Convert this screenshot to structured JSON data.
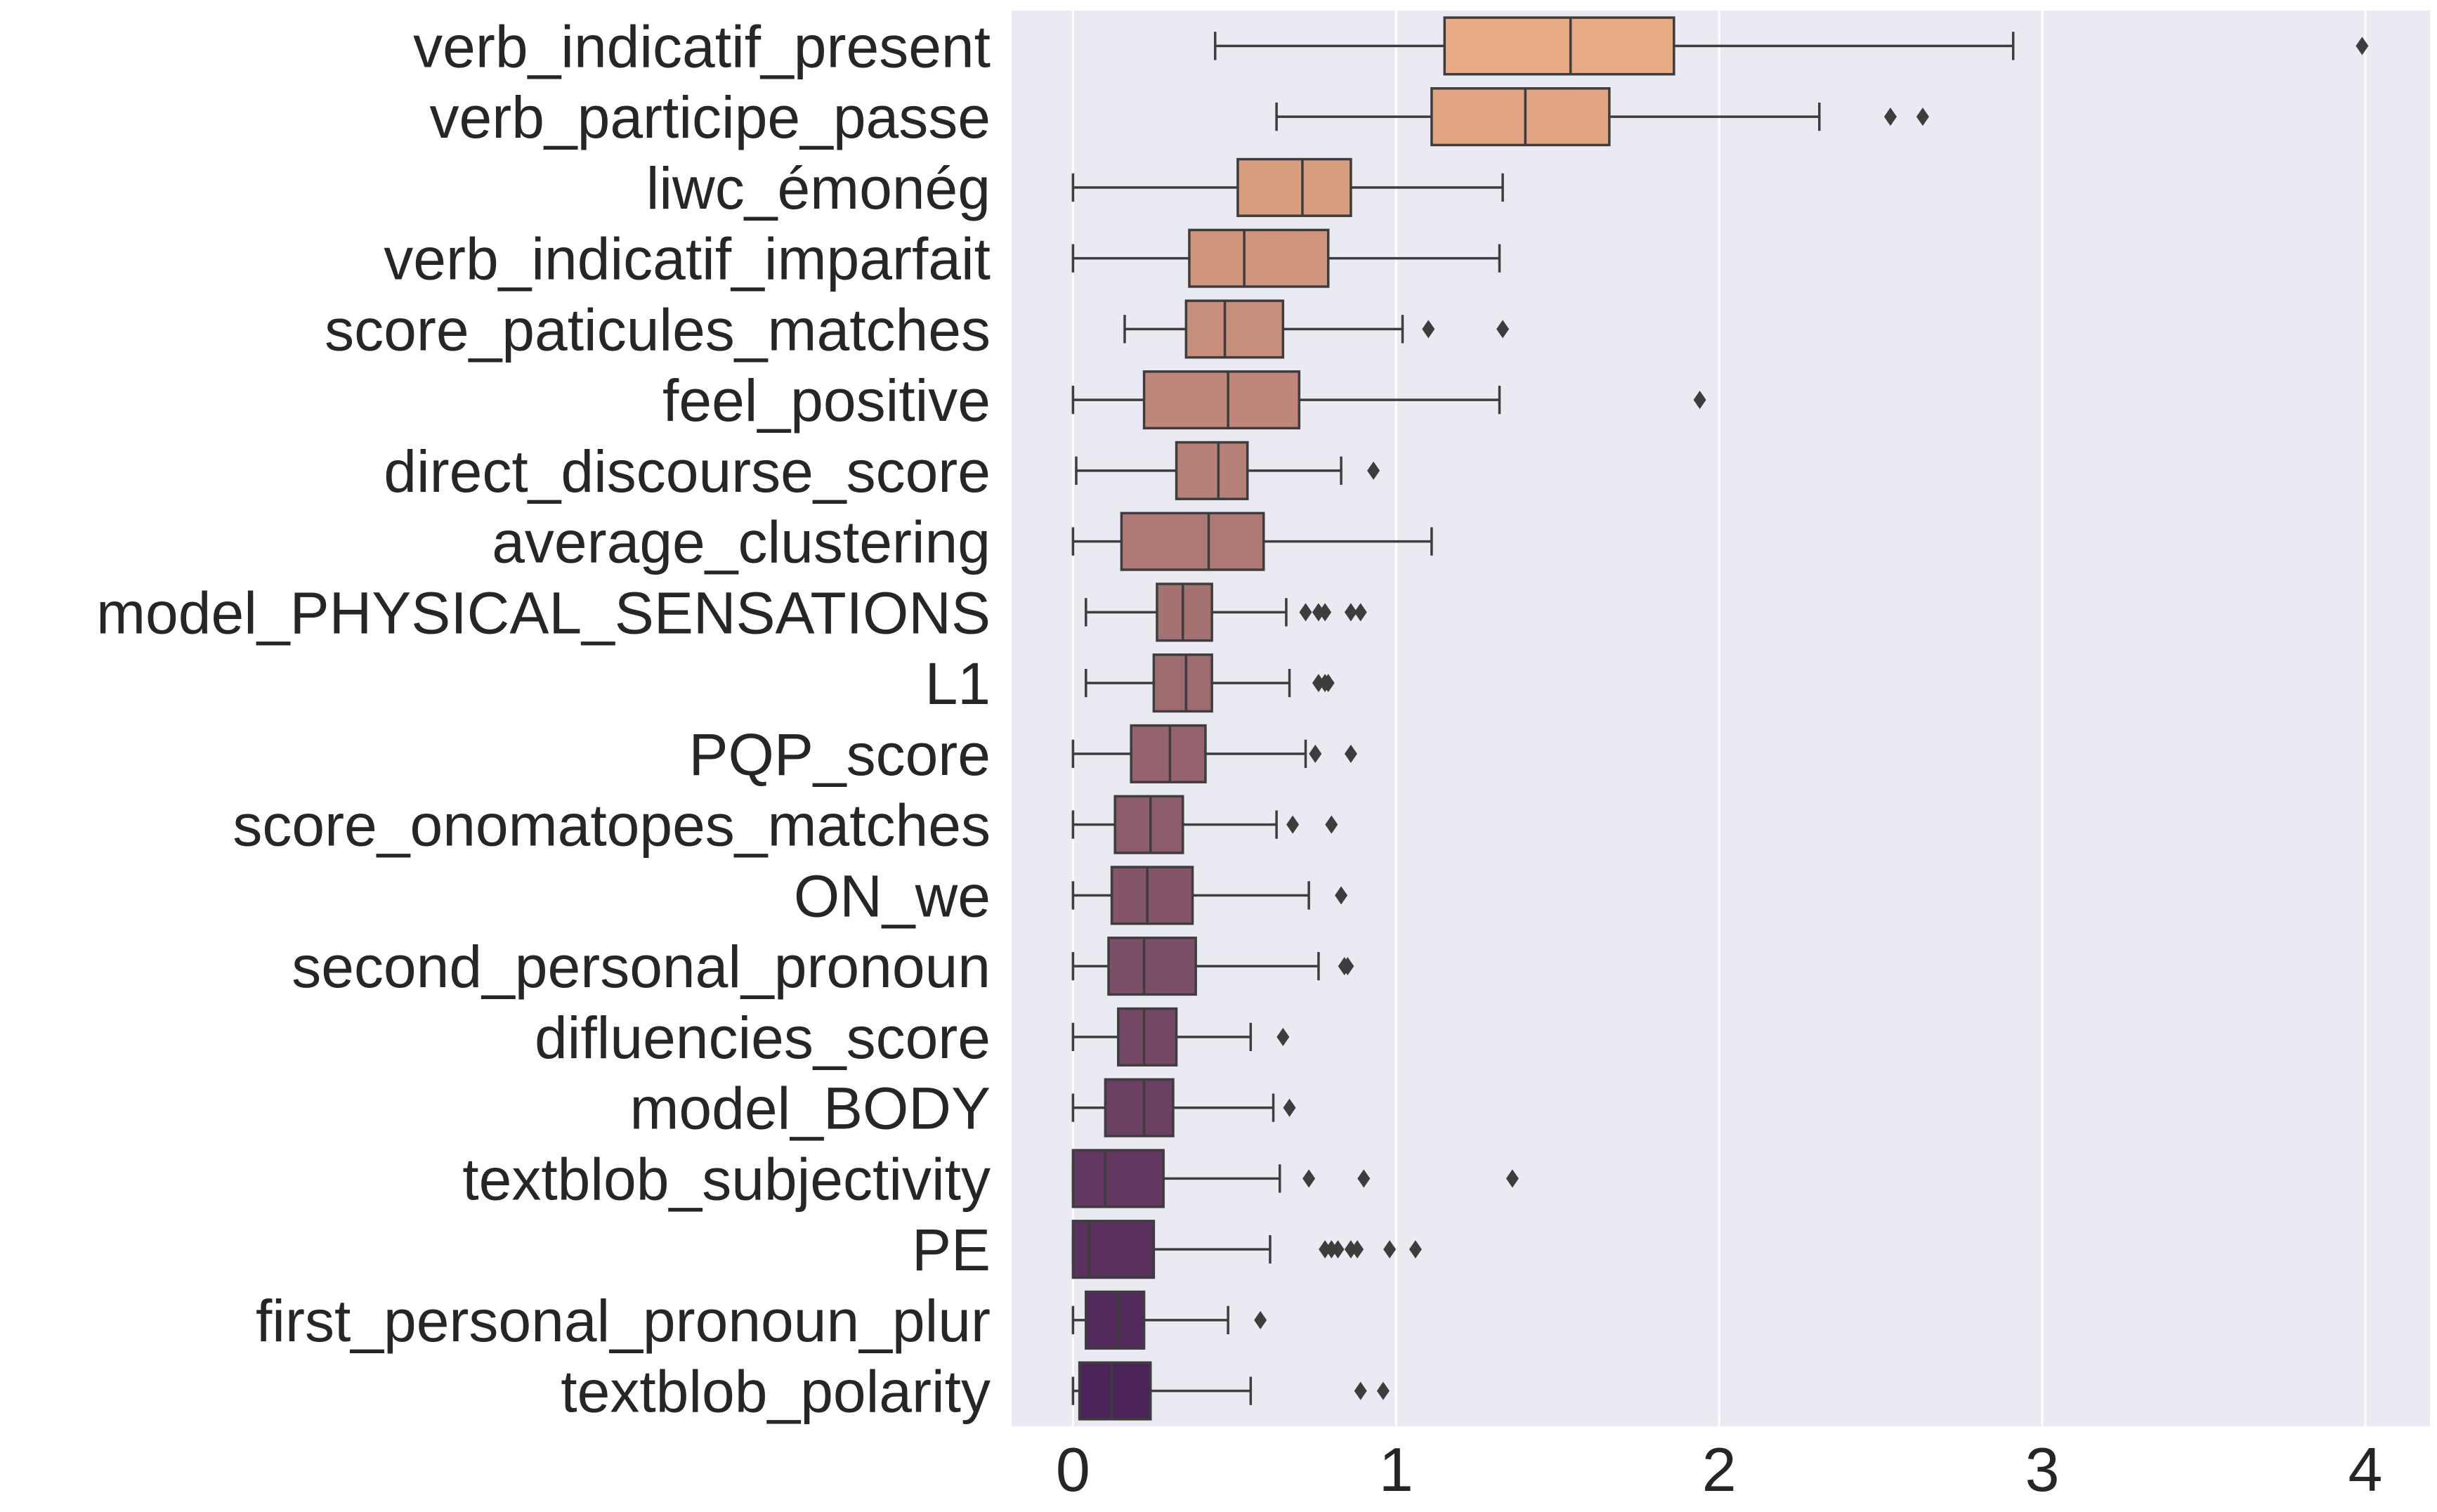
{
  "chart_data": {
    "type": "box",
    "orientation": "horizontal",
    "title": "",
    "xlabel": "",
    "ylabel": "",
    "xlim": [
      -0.19,
      4.2
    ],
    "xticks": [
      0,
      1,
      2,
      3,
      4
    ],
    "grid": true,
    "legend": "none",
    "background_color": "#eaeaf2",
    "palette_start": "#e8ab84",
    "palette_end": "#4a2359",
    "categories": [
      "verb_indicatif_present",
      "verb_participe_passe",
      "liwc_émonég",
      "verb_indicatif_imparfait",
      "score_paticules_matches",
      "feel_positive",
      "direct_discourse_score",
      "average_clustering",
      "model_PHYSICAL_SENSATIONS",
      "L1",
      "PQP_score",
      "score_onomatopes_matches",
      "ON_we",
      "second_personal_pronoun",
      "difluencies_score",
      "model_BODY",
      "textblob_subjectivity",
      "PE",
      "first_personal_pronoun_plur",
      "textblob_polarity"
    ],
    "boxes": [
      {
        "whislo": 0.44,
        "q1": 1.15,
        "med": 1.54,
        "q3": 1.86,
        "whishi": 2.91,
        "fliers": [
          3.99
        ]
      },
      {
        "whislo": 0.63,
        "q1": 1.11,
        "med": 1.4,
        "q3": 1.66,
        "whishi": 2.31,
        "fliers": [
          2.53,
          2.63
        ]
      },
      {
        "whislo": 0.0,
        "q1": 0.51,
        "med": 0.71,
        "q3": 0.86,
        "whishi": 1.33,
        "fliers": []
      },
      {
        "whislo": 0.0,
        "q1": 0.36,
        "med": 0.53,
        "q3": 0.79,
        "whishi": 1.32,
        "fliers": []
      },
      {
        "whislo": 0.16,
        "q1": 0.35,
        "med": 0.47,
        "q3": 0.65,
        "whishi": 1.02,
        "fliers": [
          1.1,
          1.33
        ]
      },
      {
        "whislo": 0.0,
        "q1": 0.22,
        "med": 0.48,
        "q3": 0.7,
        "whishi": 1.32,
        "fliers": [
          1.94
        ]
      },
      {
        "whislo": 0.01,
        "q1": 0.32,
        "med": 0.45,
        "q3": 0.54,
        "whishi": 0.83,
        "fliers": [
          0.93
        ]
      },
      {
        "whislo": 0.0,
        "q1": 0.15,
        "med": 0.42,
        "q3": 0.59,
        "whishi": 1.11,
        "fliers": []
      },
      {
        "whislo": 0.04,
        "q1": 0.26,
        "med": 0.34,
        "q3": 0.43,
        "whishi": 0.66,
        "fliers": [
          0.72,
          0.76,
          0.78,
          0.86,
          0.89
        ]
      },
      {
        "whislo": 0.04,
        "q1": 0.25,
        "med": 0.35,
        "q3": 0.43,
        "whishi": 0.67,
        "fliers": [
          0.76,
          0.78,
          0.79
        ]
      },
      {
        "whislo": 0.0,
        "q1": 0.18,
        "med": 0.3,
        "q3": 0.41,
        "whishi": 0.72,
        "fliers": [
          0.75,
          0.86
        ]
      },
      {
        "whislo": 0.0,
        "q1": 0.13,
        "med": 0.24,
        "q3": 0.34,
        "whishi": 0.63,
        "fliers": [
          0.68,
          0.8
        ]
      },
      {
        "whislo": 0.0,
        "q1": 0.12,
        "med": 0.23,
        "q3": 0.37,
        "whishi": 0.73,
        "fliers": [
          0.83
        ]
      },
      {
        "whislo": 0.0,
        "q1": 0.11,
        "med": 0.22,
        "q3": 0.38,
        "whishi": 0.76,
        "fliers": [
          0.84,
          0.85
        ]
      },
      {
        "whislo": 0.0,
        "q1": 0.14,
        "med": 0.22,
        "q3": 0.32,
        "whishi": 0.55,
        "fliers": [
          0.65
        ]
      },
      {
        "whislo": 0.0,
        "q1": 0.1,
        "med": 0.22,
        "q3": 0.31,
        "whishi": 0.62,
        "fliers": [
          0.67
        ]
      },
      {
        "whislo": 0.0,
        "q1": 0.0,
        "med": 0.1,
        "q3": 0.28,
        "whishi": 0.64,
        "fliers": [
          0.73,
          0.9,
          1.36
        ]
      },
      {
        "whislo": 0.0,
        "q1": 0.0,
        "med": 0.05,
        "q3": 0.25,
        "whishi": 0.61,
        "fliers": [
          0.78,
          0.8,
          0.82,
          0.86,
          0.88,
          0.98,
          1.06
        ]
      },
      {
        "whislo": 0.0,
        "q1": 0.04,
        "med": 0.14,
        "q3": 0.22,
        "whishi": 0.48,
        "fliers": [
          0.58
        ]
      },
      {
        "whislo": 0.0,
        "q1": 0.02,
        "med": 0.12,
        "q3": 0.24,
        "whishi": 0.55,
        "fliers": [
          0.89,
          0.96
        ]
      }
    ]
  }
}
